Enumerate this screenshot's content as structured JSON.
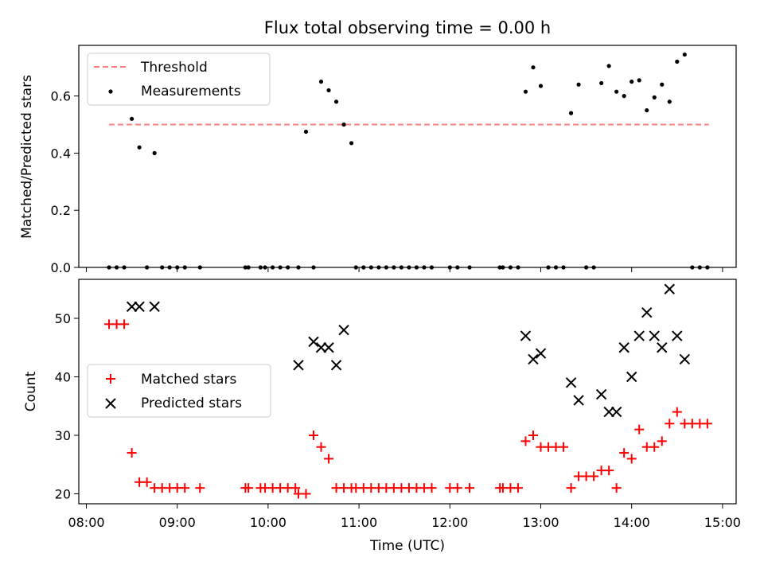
{
  "chart_data": [
    {
      "type": "scatter",
      "title": "Flux total observing time = 0.00 h",
      "xlabel": "",
      "ylabel": "Matched/Predicted stars",
      "xlim": [
        "08:00",
        "15:00"
      ],
      "ylim": [
        0,
        0.78
      ],
      "yticks": [
        "0.0",
        "0.2",
        "0.4",
        "0.6"
      ],
      "legend_position": "upper-left",
      "series": [
        {
          "name": "Threshold",
          "style": "dashed-line",
          "color": "#ff7f7f",
          "points": [
            [
              "08:15",
              0.5
            ],
            [
              "14:51",
              0.5
            ]
          ]
        },
        {
          "name": "Measurements",
          "style": "dot",
          "color": "#000000",
          "points": [
            [
              "08:15",
              0
            ],
            [
              "08:20",
              0
            ],
            [
              "08:25",
              0
            ],
            [
              "08:30",
              0.52
            ],
            [
              "08:35",
              0.42
            ],
            [
              "08:40",
              0
            ],
            [
              "08:45",
              0.4
            ],
            [
              "08:50",
              0
            ],
            [
              "08:55",
              0
            ],
            [
              "09:00",
              0
            ],
            [
              "09:05",
              0
            ],
            [
              "09:15",
              0
            ],
            [
              "09:45",
              0
            ],
            [
              "09:47",
              0
            ],
            [
              "09:55",
              0
            ],
            [
              "09:58",
              0
            ],
            [
              "10:03",
              0
            ],
            [
              "10:08",
              0
            ],
            [
              "10:13",
              0
            ],
            [
              "10:20",
              0
            ],
            [
              "10:25",
              0.475
            ],
            [
              "10:30",
              0
            ],
            [
              "10:35",
              0.65
            ],
            [
              "10:40",
              0.62
            ],
            [
              "10:45",
              0.58
            ],
            [
              "10:50",
              0.5
            ],
            [
              "10:55",
              0.435
            ],
            [
              "10:58",
              0
            ],
            [
              "11:03",
              0
            ],
            [
              "11:08",
              0
            ],
            [
              "11:13",
              0
            ],
            [
              "11:18",
              0
            ],
            [
              "11:23",
              0
            ],
            [
              "11:28",
              0
            ],
            [
              "11:33",
              0
            ],
            [
              "11:38",
              0
            ],
            [
              "11:43",
              0
            ],
            [
              "11:48",
              0
            ],
            [
              "12:00",
              0
            ],
            [
              "12:05",
              0
            ],
            [
              "12:13",
              0
            ],
            [
              "12:33",
              0
            ],
            [
              "12:35",
              0
            ],
            [
              "12:40",
              0
            ],
            [
              "12:45",
              0
            ],
            [
              "12:50",
              0.615
            ],
            [
              "12:55",
              0.7
            ],
            [
              "13:00",
              0.635
            ],
            [
              "13:05",
              0
            ],
            [
              "13:10",
              0
            ],
            [
              "13:15",
              0
            ],
            [
              "13:20",
              0.54
            ],
            [
              "13:25",
              0.64
            ],
            [
              "13:30",
              0
            ],
            [
              "13:35",
              0
            ],
            [
              "13:40",
              0.645
            ],
            [
              "13:45",
              0.705
            ],
            [
              "13:50",
              0.615
            ],
            [
              "13:55",
              0.6
            ],
            [
              "14:00",
              0.65
            ],
            [
              "14:05",
              0.655
            ],
            [
              "14:10",
              0.55
            ],
            [
              "14:15",
              0.595
            ],
            [
              "14:20",
              0.64
            ],
            [
              "14:25",
              0.58
            ],
            [
              "14:30",
              0.72
            ],
            [
              "14:35",
              0.745
            ],
            [
              "14:40",
              0
            ],
            [
              "14:45",
              0
            ],
            [
              "14:50",
              0
            ]
          ]
        }
      ]
    },
    {
      "type": "scatter",
      "title": "",
      "xlabel": "Time (UTC)",
      "ylabel": "Count",
      "xlim": [
        "08:00",
        "15:00"
      ],
      "xticks": [
        "08:00",
        "09:00",
        "10:00",
        "11:00",
        "12:00",
        "13:00",
        "14:00",
        "15:00"
      ],
      "ylim": [
        18,
        57
      ],
      "yticks": [
        "20",
        "30",
        "40",
        "50"
      ],
      "legend_position": "center-left",
      "series": [
        {
          "name": "Matched stars",
          "style": "plus",
          "color": "#ff0000",
          "points": [
            [
              "08:15",
              49
            ],
            [
              "08:20",
              49
            ],
            [
              "08:25",
              49
            ],
            [
              "08:30",
              27
            ],
            [
              "08:35",
              22
            ],
            [
              "08:40",
              22
            ],
            [
              "08:45",
              21
            ],
            [
              "08:50",
              21
            ],
            [
              "08:55",
              21
            ],
            [
              "09:00",
              21
            ],
            [
              "09:05",
              21
            ],
            [
              "09:15",
              21
            ],
            [
              "09:45",
              21
            ],
            [
              "09:47",
              21
            ],
            [
              "09:55",
              21
            ],
            [
              "09:58",
              21
            ],
            [
              "10:03",
              21
            ],
            [
              "10:08",
              21
            ],
            [
              "10:13",
              21
            ],
            [
              "10:18",
              21
            ],
            [
              "10:20",
              20
            ],
            [
              "10:25",
              20
            ],
            [
              "10:30",
              30
            ],
            [
              "10:35",
              28
            ],
            [
              "10:40",
              26
            ],
            [
              "10:45",
              21
            ],
            [
              "10:50",
              21
            ],
            [
              "10:55",
              21
            ],
            [
              "10:58",
              21
            ],
            [
              "11:03",
              21
            ],
            [
              "11:08",
              21
            ],
            [
              "11:13",
              21
            ],
            [
              "11:18",
              21
            ],
            [
              "11:23",
              21
            ],
            [
              "11:28",
              21
            ],
            [
              "11:33",
              21
            ],
            [
              "11:38",
              21
            ],
            [
              "11:43",
              21
            ],
            [
              "11:48",
              21
            ],
            [
              "12:00",
              21
            ],
            [
              "12:05",
              21
            ],
            [
              "12:13",
              21
            ],
            [
              "12:33",
              21
            ],
            [
              "12:35",
              21
            ],
            [
              "12:40",
              21
            ],
            [
              "12:45",
              21
            ],
            [
              "12:50",
              29
            ],
            [
              "12:55",
              30
            ],
            [
              "13:00",
              28
            ],
            [
              "13:05",
              28
            ],
            [
              "13:10",
              28
            ],
            [
              "13:15",
              28
            ],
            [
              "13:20",
              21
            ],
            [
              "13:25",
              23
            ],
            [
              "13:30",
              23
            ],
            [
              "13:35",
              23
            ],
            [
              "13:40",
              24
            ],
            [
              "13:45",
              24
            ],
            [
              "13:50",
              21
            ],
            [
              "13:55",
              27
            ],
            [
              "14:00",
              26
            ],
            [
              "14:05",
              31
            ],
            [
              "14:10",
              28
            ],
            [
              "14:15",
              28
            ],
            [
              "14:20",
              29
            ],
            [
              "14:25",
              32
            ],
            [
              "14:30",
              34
            ],
            [
              "14:35",
              32
            ],
            [
              "14:40",
              32
            ],
            [
              "14:45",
              32
            ],
            [
              "14:50",
              32
            ]
          ]
        },
        {
          "name": "Predicted stars",
          "style": "x",
          "color": "#000000",
          "points": [
            [
              "08:30",
              52
            ],
            [
              "08:35",
              52
            ],
            [
              "08:45",
              52
            ],
            [
              "10:20",
              42
            ],
            [
              "10:30",
              46
            ],
            [
              "10:35",
              45
            ],
            [
              "10:40",
              45
            ],
            [
              "10:45",
              42
            ],
            [
              "10:50",
              48
            ],
            [
              "12:50",
              47
            ],
            [
              "12:55",
              43
            ],
            [
              "13:00",
              44
            ],
            [
              "13:20",
              39
            ],
            [
              "13:25",
              36
            ],
            [
              "13:40",
              37
            ],
            [
              "13:45",
              34
            ],
            [
              "13:50",
              34
            ],
            [
              "13:55",
              45
            ],
            [
              "14:00",
              40
            ],
            [
              "14:05",
              47
            ],
            [
              "14:10",
              51
            ],
            [
              "14:15",
              47
            ],
            [
              "14:20",
              45
            ],
            [
              "14:25",
              55
            ],
            [
              "14:30",
              47
            ],
            [
              "14:35",
              43
            ]
          ]
        }
      ]
    }
  ]
}
